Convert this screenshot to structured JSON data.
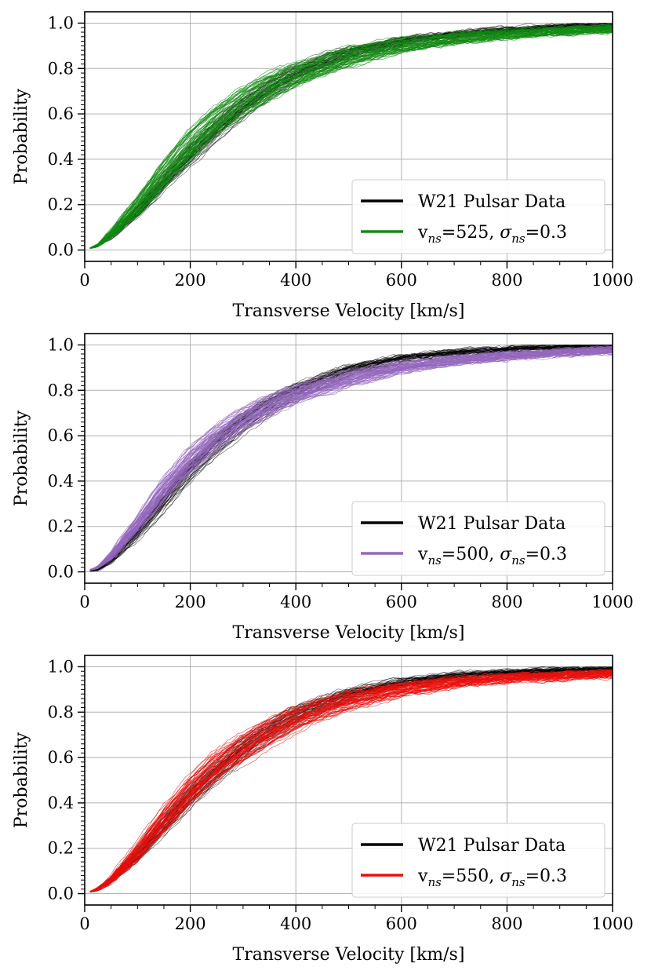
{
  "chart_data": [
    {
      "type": "line",
      "title": "",
      "xlabel": "Transverse Velocity [km/s]",
      "ylabel": "Probability",
      "xlim": [
        0,
        1000
      ],
      "ylim": [
        -0.05,
        1.05
      ],
      "xticks": [
        0,
        200,
        400,
        600,
        800,
        1000
      ],
      "yticks": [
        0.0,
        0.2,
        0.4,
        0.6,
        0.8,
        1.0
      ],
      "xtick_labels": [
        "0",
        "200",
        "400",
        "600",
        "800",
        "1000"
      ],
      "ytick_labels": [
        "0.0",
        "0.2",
        "0.4",
        "0.6",
        "0.8",
        "1.0"
      ],
      "grid": true,
      "legend_position": "lower-right",
      "legend": [
        {
          "label": "W21 Pulsar Data",
          "color": "#000000"
        },
        {
          "label_main": "v",
          "label_sub1": "ns",
          "label_mid": "=525, ",
          "label_sigma": "σ",
          "label_sub2": "ns",
          "label_end": "=0.3",
          "color": "#138a13"
        }
      ],
      "series": [
        {
          "x": [
            0,
            25,
            50,
            100,
            150,
            200,
            250,
            300,
            350,
            400,
            500,
            600,
            700,
            800,
            900,
            1000
          ],
          "values": [
            0.0,
            0.02,
            0.06,
            0.17,
            0.3,
            0.42,
            0.53,
            0.63,
            0.71,
            0.78,
            0.87,
            0.92,
            0.95,
            0.97,
            0.985,
            0.99
          ],
          "color": "#000000",
          "n_realisations": 40,
          "spread": 0.03
        },
        {
          "x": [
            0,
            25,
            50,
            100,
            150,
            200,
            250,
            300,
            350,
            400,
            500,
            600,
            700,
            800,
            900,
            1000
          ],
          "values": [
            0.0,
            0.02,
            0.07,
            0.19,
            0.33,
            0.46,
            0.57,
            0.65,
            0.72,
            0.77,
            0.85,
            0.9,
            0.93,
            0.95,
            0.965,
            0.975
          ],
          "color": "#138a13",
          "n_realisations": 60,
          "spread": 0.055
        }
      ]
    },
    {
      "type": "line",
      "title": "",
      "xlabel": "Transverse Velocity [km/s]",
      "ylabel": "Probability",
      "xlim": [
        0,
        1000
      ],
      "ylim": [
        -0.05,
        1.05
      ],
      "xticks": [
        0,
        200,
        400,
        600,
        800,
        1000
      ],
      "yticks": [
        0.0,
        0.2,
        0.4,
        0.6,
        0.8,
        1.0
      ],
      "xtick_labels": [
        "0",
        "200",
        "400",
        "600",
        "800",
        "1000"
      ],
      "ytick_labels": [
        "0.0",
        "0.2",
        "0.4",
        "0.6",
        "0.8",
        "1.0"
      ],
      "grid": true,
      "legend_position": "lower-right",
      "legend": [
        {
          "label": "W21 Pulsar Data",
          "color": "#000000"
        },
        {
          "label_main": "v",
          "label_sub1": "ns",
          "label_mid": "=500, ",
          "label_sigma": "σ",
          "label_sub2": "ns",
          "label_end": "=0.3",
          "color": "#9467bd"
        }
      ],
      "series": [
        {
          "x": [
            0,
            25,
            50,
            100,
            150,
            200,
            250,
            300,
            350,
            400,
            500,
            600,
            700,
            800,
            900,
            1000
          ],
          "values": [
            0.0,
            0.01,
            0.05,
            0.17,
            0.31,
            0.45,
            0.56,
            0.66,
            0.74,
            0.8,
            0.89,
            0.94,
            0.965,
            0.98,
            0.99,
            0.995
          ],
          "color": "#000000",
          "n_realisations": 40,
          "spread": 0.03
        },
        {
          "x": [
            0,
            25,
            50,
            100,
            150,
            200,
            250,
            300,
            350,
            400,
            500,
            600,
            700,
            800,
            900,
            1000
          ],
          "values": [
            0.0,
            0.02,
            0.07,
            0.21,
            0.36,
            0.49,
            0.59,
            0.67,
            0.73,
            0.78,
            0.85,
            0.9,
            0.93,
            0.95,
            0.965,
            0.975
          ],
          "color": "#9467bd",
          "n_realisations": 60,
          "spread": 0.05
        }
      ]
    },
    {
      "type": "line",
      "title": "",
      "xlabel": "Transverse Velocity [km/s]",
      "ylabel": "Probability",
      "xlim": [
        0,
        1000
      ],
      "ylim": [
        -0.05,
        1.05
      ],
      "xticks": [
        0,
        200,
        400,
        600,
        800,
        1000
      ],
      "yticks": [
        0.0,
        0.2,
        0.4,
        0.6,
        0.8,
        1.0
      ],
      "xtick_labels": [
        "0",
        "200",
        "400",
        "600",
        "800",
        "1000"
      ],
      "ytick_labels": [
        "0.0",
        "0.2",
        "0.4",
        "0.6",
        "0.8",
        "1.0"
      ],
      "grid": true,
      "legend_position": "lower-right",
      "legend": [
        {
          "label": "W21 Pulsar Data",
          "color": "#000000"
        },
        {
          "label_main": "v",
          "label_sub1": "ns",
          "label_mid": "=550, ",
          "label_sigma": "σ",
          "label_sub2": "ns",
          "label_end": "=0.3",
          "color": "#e8100c"
        }
      ],
      "series": [
        {
          "x": [
            0,
            25,
            50,
            100,
            150,
            200,
            250,
            300,
            350,
            400,
            500,
            600,
            700,
            800,
            900,
            1000
          ],
          "values": [
            0.0,
            0.02,
            0.06,
            0.17,
            0.3,
            0.43,
            0.54,
            0.64,
            0.72,
            0.79,
            0.88,
            0.93,
            0.96,
            0.975,
            0.985,
            0.99
          ],
          "color": "#000000",
          "n_realisations": 40,
          "spread": 0.03
        },
        {
          "x": [
            0,
            25,
            50,
            100,
            150,
            200,
            250,
            300,
            350,
            400,
            500,
            600,
            700,
            800,
            900,
            1000
          ],
          "values": [
            0.0,
            0.02,
            0.06,
            0.18,
            0.32,
            0.45,
            0.56,
            0.64,
            0.71,
            0.77,
            0.85,
            0.9,
            0.93,
            0.95,
            0.96,
            0.97
          ],
          "color": "#e8100c",
          "n_realisations": 60,
          "spread": 0.055
        }
      ]
    }
  ]
}
